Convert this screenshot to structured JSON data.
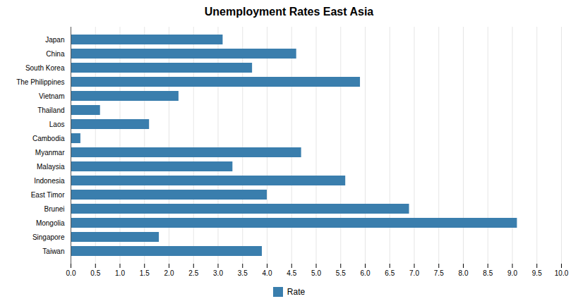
{
  "chart_data": {
    "type": "bar",
    "title": "Unemployment Rates East Asia",
    "orientation": "horizontal",
    "categories": [
      "Japan",
      "China",
      "South Korea",
      "The Philippines",
      "Vietnam",
      "Thailand",
      "Laos",
      "Cambodia",
      "Myanmar",
      "Malaysia",
      "Indonesia",
      "East Timor",
      "Brunei",
      "Mongolia",
      "Singapore",
      "Taiwan"
    ],
    "series": [
      {
        "name": "Rate",
        "color": "#3a7ead",
        "values": [
          3.1,
          4.6,
          3.7,
          5.9,
          2.2,
          0.6,
          1.6,
          0.2,
          4.7,
          3.3,
          5.6,
          4.0,
          6.9,
          9.1,
          1.8,
          3.9
        ]
      }
    ],
    "xlim": [
      0,
      10.0
    ],
    "xticks": [
      {
        "value": 0,
        "label": "0.0"
      },
      0.5,
      {
        "value": 1,
        "label": "1.0"
      },
      1.5,
      {
        "value": 2,
        "label": "2.0"
      },
      2.5,
      {
        "value": 3,
        "label": "3.0"
      },
      3.5,
      {
        "value": 4,
        "label": "4.0"
      },
      4.5,
      {
        "value": 5,
        "label": "5.0"
      },
      5.5,
      {
        "value": 6,
        "label": "6.0"
      },
      6.5,
      {
        "value": 7,
        "label": "7.0"
      },
      7.5,
      {
        "value": 8,
        "label": "8.0"
      },
      8.5,
      {
        "value": 9,
        "label": "9.0"
      },
      9.5,
      {
        "value": 10,
        "label": "10.0"
      }
    ],
    "grid": true,
    "legend": "bottom"
  }
}
